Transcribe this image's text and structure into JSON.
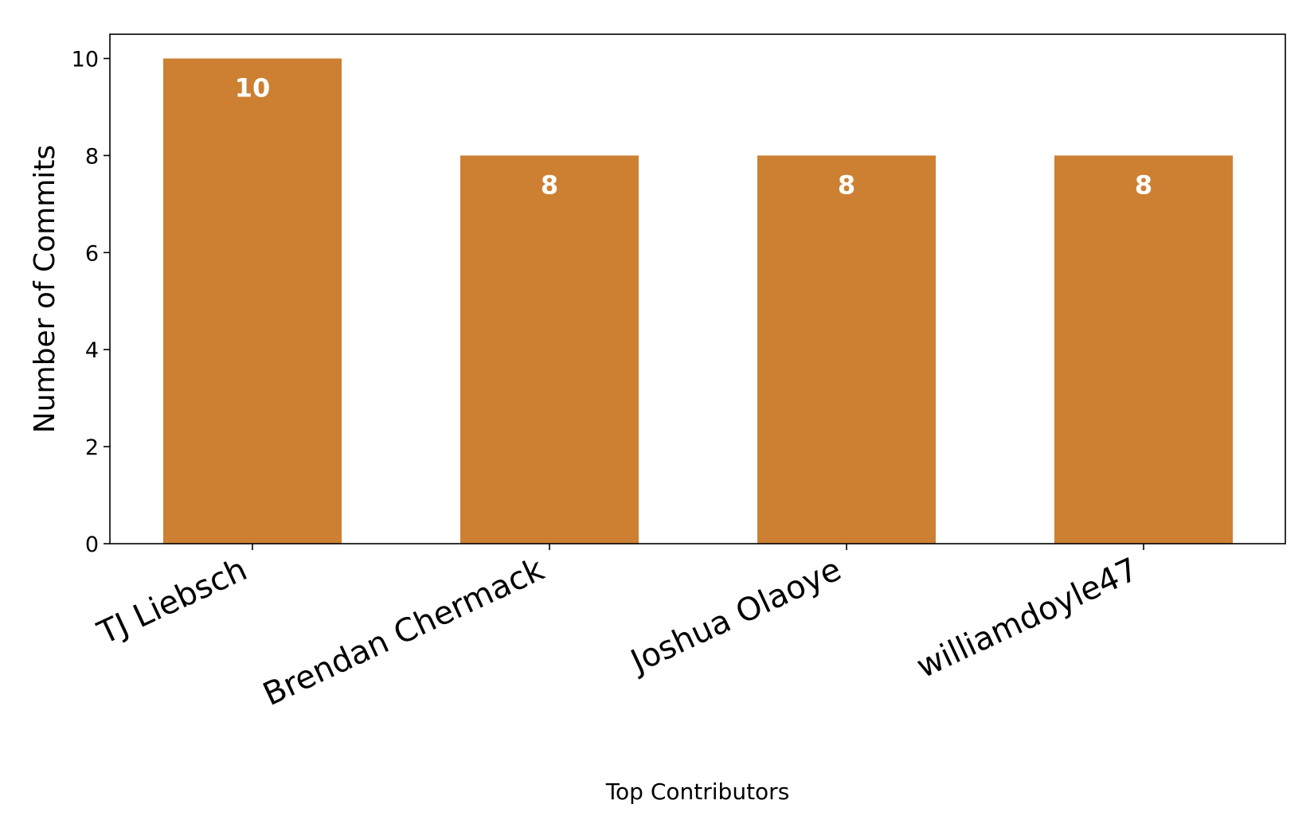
{
  "chart_data": {
    "type": "bar",
    "title": "",
    "xlabel": "Top Contributors",
    "ylabel": "Number of Commits",
    "categories": [
      "TJ Liebsch",
      "Brendan Chermack",
      "Joshua Olaoye",
      "williamdoyle47"
    ],
    "values": [
      10,
      8,
      8,
      8
    ],
    "data_labels": [
      "10",
      "8",
      "8",
      "8"
    ],
    "yticks": [
      0,
      2,
      4,
      6,
      8,
      10
    ],
    "ylim": [
      0,
      10.5
    ],
    "grid": false,
    "legend": "none",
    "colors": {
      "bar": "#CD8032",
      "data_label": "#ffffff",
      "axis": "#000000",
      "background": "#ffffff"
    }
  }
}
